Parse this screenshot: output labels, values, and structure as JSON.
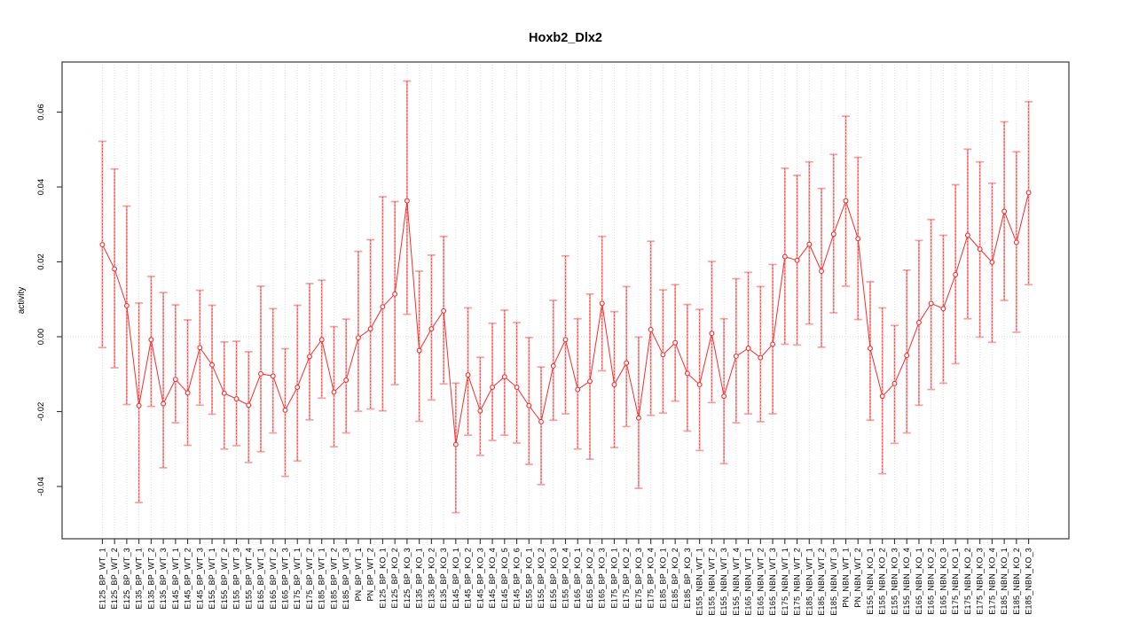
{
  "chart_data": {
    "type": "line",
    "subtype": "means-with-error-bars",
    "title": "Hoxb2_Dlx2",
    "xlabel": "",
    "ylabel": "activity",
    "ylim": [
      -0.054,
      0.0735
    ],
    "yticks": [
      -0.04,
      -0.02,
      0.0,
      0.02,
      0.04,
      0.06
    ],
    "ytick_labels": [
      "-0.04",
      "-0.02",
      "0.00",
      "0.02",
      "0.04",
      "0.06"
    ],
    "grid": {
      "vertical_dotted_per_point": true,
      "horizontal_zero_dotted": true
    },
    "legend": "none",
    "x_labels_rotated_90": true,
    "y_labels_rotated_90": true,
    "colors": {
      "series_line": "#fb2b2a",
      "marker": "#fb2b2a",
      "error_bar": "#f89f9f",
      "error_bar_center_dash": "#fb2b2a",
      "grid": "#dedede",
      "zero_line": "#d9d9d9",
      "axis_box": "#545454",
      "tick": "#333333",
      "text": "#000000"
    },
    "points": [
      {
        "label": "E125_BP_WT_1",
        "mean": 0.0246,
        "lower": -0.0029,
        "upper": 0.0522
      },
      {
        "label": "E125_BP_WT_2",
        "mean": 0.0181,
        "lower": -0.0083,
        "upper": 0.0448
      },
      {
        "label": "E125_BP_WT_3",
        "mean": 0.0083,
        "lower": -0.0181,
        "upper": 0.0349
      },
      {
        "label": "E135_BP_WT_1",
        "mean": -0.0184,
        "lower": -0.0443,
        "upper": 0.009
      },
      {
        "label": "E135_BP_WT_2",
        "mean": -0.0008,
        "lower": -0.0186,
        "upper": 0.0161
      },
      {
        "label": "E135_BP_WT_3",
        "mean": -0.0179,
        "lower": -0.035,
        "upper": 0.0118
      },
      {
        "label": "E145_BP_WT_1",
        "mean": -0.0114,
        "lower": -0.023,
        "upper": 0.0085
      },
      {
        "label": "E145_BP_WT_2",
        "mean": -0.015,
        "lower": -0.029,
        "upper": 0.0045
      },
      {
        "label": "E145_BP_WT_3",
        "mean": -0.0029,
        "lower": -0.0183,
        "upper": 0.0124
      },
      {
        "label": "E155_BP_WT_1",
        "mean": -0.0075,
        "lower": -0.0207,
        "upper": 0.0084
      },
      {
        "label": "E155_BP_WT_2",
        "mean": -0.0151,
        "lower": -0.03,
        "upper": -0.0014
      },
      {
        "label": "E155_BP_WT_3",
        "mean": -0.0166,
        "lower": -0.0291,
        "upper": -0.0012
      },
      {
        "label": "E155_BP_WT_4",
        "mean": -0.0183,
        "lower": -0.0336,
        "upper": -0.004
      },
      {
        "label": "E165_BP_WT_1",
        "mean": -0.0099,
        "lower": -0.0307,
        "upper": 0.0135
      },
      {
        "label": "E165_BP_WT_2",
        "mean": -0.0105,
        "lower": -0.0257,
        "upper": 0.0075
      },
      {
        "label": "E165_BP_WT_3",
        "mean": -0.0196,
        "lower": -0.0373,
        "upper": -0.0032
      },
      {
        "label": "E175_BP_WT_1",
        "mean": -0.0135,
        "lower": -0.0332,
        "upper": 0.0084
      },
      {
        "label": "E175_BP_WT_2",
        "mean": -0.0053,
        "lower": -0.0222,
        "upper": 0.0142
      },
      {
        "label": "E185_BP_WT_1",
        "mean": -0.0008,
        "lower": -0.0164,
        "upper": 0.0151
      },
      {
        "label": "E185_BP_WT_2",
        "mean": -0.0148,
        "lower": -0.0294,
        "upper": 0.0027
      },
      {
        "label": "E185_BP_WT_3",
        "mean": -0.0116,
        "lower": -0.0257,
        "upper": 0.0047
      },
      {
        "label": "PN_BP_WT_1",
        "mean": -0.0003,
        "lower": -0.0199,
        "upper": 0.0228
      },
      {
        "label": "PN_BP_WT_2",
        "mean": 0.0021,
        "lower": -0.0193,
        "upper": 0.0259
      },
      {
        "label": "E125_BP_KO_1",
        "mean": 0.008,
        "lower": -0.0198,
        "upper": 0.0374
      },
      {
        "label": "E125_BP_KO_2",
        "mean": 0.0114,
        "lower": -0.0128,
        "upper": 0.0361
      },
      {
        "label": "E125_BP_KO_3",
        "mean": 0.0363,
        "lower": 0.006,
        "upper": 0.0683
      },
      {
        "label": "E135_BP_KO_1",
        "mean": -0.0037,
        "lower": -0.0226,
        "upper": 0.0175
      },
      {
        "label": "E135_BP_KO_2",
        "mean": 0.0021,
        "lower": -0.0169,
        "upper": 0.0218
      },
      {
        "label": "E135_BP_KO_3",
        "mean": 0.0069,
        "lower": -0.0126,
        "upper": 0.0268
      },
      {
        "label": "E145_BP_KO_1",
        "mean": -0.0288,
        "lower": -0.047,
        "upper": -0.0124
      },
      {
        "label": "E145_BP_KO_2",
        "mean": -0.0102,
        "lower": -0.0263,
        "upper": 0.0077
      },
      {
        "label": "E145_BP_KO_3",
        "mean": -0.0198,
        "lower": -0.0317,
        "upper": -0.0055
      },
      {
        "label": "E145_BP_KO_4",
        "mean": -0.0135,
        "lower": -0.0277,
        "upper": 0.0036
      },
      {
        "label": "E145_BP_KO_5",
        "mean": -0.0107,
        "lower": -0.0263,
        "upper": 0.0071
      },
      {
        "label": "E145_BP_KO_6",
        "mean": -0.0135,
        "lower": -0.0284,
        "upper": 0.0038
      },
      {
        "label": "E155_BP_KO_1",
        "mean": -0.0184,
        "lower": -0.0341,
        "upper": -0.0002
      },
      {
        "label": "E155_BP_KO_2",
        "mean": -0.0227,
        "lower": -0.0395,
        "upper": -0.0081
      },
      {
        "label": "E155_BP_KO_3",
        "mean": -0.0078,
        "lower": -0.0223,
        "upper": 0.0097
      },
      {
        "label": "E155_BP_KO_4",
        "mean": -0.0008,
        "lower": -0.0206,
        "upper": 0.0216
      },
      {
        "label": "E165_BP_KO_1",
        "mean": -0.0141,
        "lower": -0.03,
        "upper": 0.0048
      },
      {
        "label": "E165_BP_KO_2",
        "mean": -0.0119,
        "lower": -0.0327,
        "upper": 0.0114
      },
      {
        "label": "E165_BP_KO_3",
        "mean": 0.0089,
        "lower": -0.0091,
        "upper": 0.0268
      },
      {
        "label": "E175_BP_KO_1",
        "mean": -0.0128,
        "lower": -0.0296,
        "upper": 0.0067
      },
      {
        "label": "E175_BP_KO_2",
        "mean": -0.007,
        "lower": -0.024,
        "upper": 0.0134
      },
      {
        "label": "E175_BP_KO_3",
        "mean": -0.0217,
        "lower": -0.0405,
        "upper": -0.0001
      },
      {
        "label": "E175_BP_KO_4",
        "mean": 0.0019,
        "lower": -0.021,
        "upper": 0.0255
      },
      {
        "label": "E185_BP_KO_1",
        "mean": -0.0048,
        "lower": -0.0204,
        "upper": 0.0125
      },
      {
        "label": "E185_BP_KO_2",
        "mean": -0.0016,
        "lower": -0.0172,
        "upper": 0.0139
      },
      {
        "label": "E185_BP_KO_3",
        "mean": -0.0098,
        "lower": -0.0252,
        "upper": 0.0086
      },
      {
        "label": "E155_NBN_WT_1",
        "mean": -0.0128,
        "lower": -0.0304,
        "upper": 0.0073
      },
      {
        "label": "E155_NBN_WT_2",
        "mean": 0.0009,
        "lower": -0.0176,
        "upper": 0.0201
      },
      {
        "label": "E155_NBN_WT_3",
        "mean": -0.0159,
        "lower": -0.0339,
        "upper": 0.0048
      },
      {
        "label": "E155_NBN_WT_4",
        "mean": -0.0052,
        "lower": -0.023,
        "upper": 0.0155
      },
      {
        "label": "E165_NBN_WT_1",
        "mean": -0.0031,
        "lower": -0.0206,
        "upper": 0.0172
      },
      {
        "label": "E165_NBN_WT_2",
        "mean": -0.0056,
        "lower": -0.0227,
        "upper": 0.0134
      },
      {
        "label": "E165_NBN_WT_3",
        "mean": -0.002,
        "lower": -0.0206,
        "upper": 0.0193
      },
      {
        "label": "E175_NBN_WT_1",
        "mean": 0.0214,
        "lower": -0.002,
        "upper": 0.045
      },
      {
        "label": "E175_NBN_WT_2",
        "mean": 0.0204,
        "lower": -0.0022,
        "upper": 0.0431
      },
      {
        "label": "E185_NBN_WT_1",
        "mean": 0.0247,
        "lower": 0.0034,
        "upper": 0.0467
      },
      {
        "label": "E185_NBN_WT_2",
        "mean": 0.0175,
        "lower": -0.0028,
        "upper": 0.0396
      },
      {
        "label": "E185_NBN_WT_3",
        "mean": 0.0274,
        "lower": 0.0064,
        "upper": 0.0487
      },
      {
        "label": "PN_NBN_WT_1",
        "mean": 0.0363,
        "lower": 0.0135,
        "upper": 0.0589
      },
      {
        "label": "PN_NBN_WT_2",
        "mean": 0.0262,
        "lower": 0.0046,
        "upper": 0.0479
      },
      {
        "label": "E155_NBN_KO_1",
        "mean": -0.0031,
        "lower": -0.0223,
        "upper": 0.0147
      },
      {
        "label": "E155_NBN_KO_2",
        "mean": -0.0159,
        "lower": -0.0366,
        "upper": 0.0077
      },
      {
        "label": "E155_NBN_KO_3",
        "mean": -0.0125,
        "lower": -0.0285,
        "upper": 0.003
      },
      {
        "label": "E155_NBN_KO_4",
        "mean": -0.005,
        "lower": -0.0257,
        "upper": 0.0178
      },
      {
        "label": "E165_NBN_KO_1",
        "mean": 0.0038,
        "lower": -0.0183,
        "upper": 0.0257
      },
      {
        "label": "E165_NBN_KO_2",
        "mean": 0.0089,
        "lower": -0.0141,
        "upper": 0.0313
      },
      {
        "label": "E165_NBN_KO_3",
        "mean": 0.0075,
        "lower": -0.0124,
        "upper": 0.0271
      },
      {
        "label": "E175_NBN_KO_1",
        "mean": 0.0166,
        "lower": -0.0072,
        "upper": 0.0406
      },
      {
        "label": "E175_NBN_KO_2",
        "mean": 0.0271,
        "lower": 0.0048,
        "upper": 0.0501
      },
      {
        "label": "E175_NBN_KO_3",
        "mean": 0.0234,
        "lower": -0.0001,
        "upper": 0.0467
      },
      {
        "label": "E175_NBN_KO_4",
        "mean": 0.0199,
        "lower": -0.0015,
        "upper": 0.041
      },
      {
        "label": "E185_NBN_KO_1",
        "mean": 0.0335,
        "lower": 0.0097,
        "upper": 0.0574
      },
      {
        "label": "E185_NBN_KO_2",
        "mean": 0.0252,
        "lower": 0.0012,
        "upper": 0.0494
      },
      {
        "label": "E185_NBN_KO_3",
        "mean": 0.0385,
        "lower": 0.0139,
        "upper": 0.0628
      }
    ]
  }
}
